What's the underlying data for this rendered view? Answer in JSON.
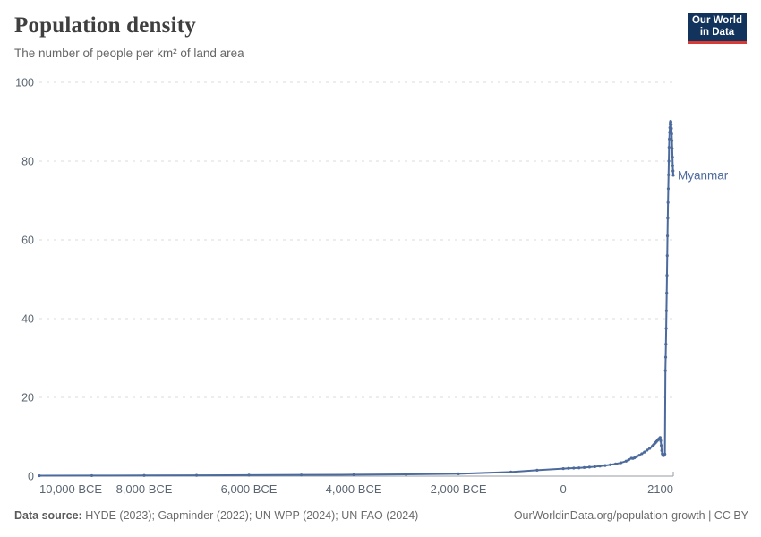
{
  "header": {
    "title": "Population density",
    "subtitle": "The number of people per km² of land area"
  },
  "logo": {
    "line1": "Our World",
    "line2": "in Data"
  },
  "footer": {
    "source_label": "Data source:",
    "source_text": " HYDE (2023); Gapminder (2022); UN WPP (2024); UN FAO (2024)",
    "link": "OurWorldinData.org/population-growth | CC BY"
  },
  "colors": {
    "line": "#4C6A9C",
    "entity_label": "#4C6A9C",
    "grid": "#d7dbdf",
    "axis": "#949da6",
    "tick_text": "#5b6673",
    "logo_bg": "#12335c",
    "logo_red": "#d93a34"
  },
  "chart_data": {
    "type": "line",
    "title": "Population density",
    "subtitle": "The number of people per km² of land area",
    "xlabel": "",
    "ylabel": "",
    "xlim": [
      -10000,
      2100
    ],
    "ylim": [
      0,
      100
    ],
    "grid": true,
    "legend_position": "end-of-line",
    "x_ticks": [
      {
        "year": -10000,
        "label": "10,000 BCE"
      },
      {
        "year": -8000,
        "label": "8,000 BCE"
      },
      {
        "year": -6000,
        "label": "6,000 BCE"
      },
      {
        "year": -4000,
        "label": "4,000 BCE"
      },
      {
        "year": -2000,
        "label": "2,000 BCE"
      },
      {
        "year": 0,
        "label": "0"
      },
      {
        "year": 2100,
        "label": "2100"
      }
    ],
    "y_ticks": [
      {
        "value": 0,
        "label": "0"
      },
      {
        "value": 20,
        "label": "20"
      },
      {
        "value": 40,
        "label": "40"
      },
      {
        "value": 60,
        "label": "60"
      },
      {
        "value": 80,
        "label": "80"
      },
      {
        "value": 100,
        "label": "100"
      }
    ],
    "series": [
      {
        "name": "Myanmar",
        "color": "#4C6A9C",
        "points": [
          [
            -10000,
            0.1
          ],
          [
            -9000,
            0.13
          ],
          [
            -8000,
            0.17
          ],
          [
            -7000,
            0.2
          ],
          [
            -6000,
            0.25
          ],
          [
            -5000,
            0.3
          ],
          [
            -4000,
            0.36
          ],
          [
            -3000,
            0.45
          ],
          [
            -2000,
            0.6
          ],
          [
            -1000,
            1.05
          ],
          [
            -500,
            1.5
          ],
          [
            0,
            1.9
          ],
          [
            100,
            2.0
          ],
          [
            200,
            2.05
          ],
          [
            300,
            2.1
          ],
          [
            400,
            2.2
          ],
          [
            500,
            2.3
          ],
          [
            600,
            2.4
          ],
          [
            700,
            2.55
          ],
          [
            800,
            2.7
          ],
          [
            900,
            2.9
          ],
          [
            1000,
            3.1
          ],
          [
            1100,
            3.4
          ],
          [
            1200,
            3.8
          ],
          [
            1250,
            4.15
          ],
          [
            1300,
            4.55
          ],
          [
            1330,
            4.5
          ],
          [
            1360,
            4.65
          ],
          [
            1400,
            4.95
          ],
          [
            1450,
            5.3
          ],
          [
            1500,
            5.7
          ],
          [
            1550,
            6.1
          ],
          [
            1600,
            6.6
          ],
          [
            1650,
            7.05
          ],
          [
            1700,
            7.6
          ],
          [
            1720,
            7.9
          ],
          [
            1740,
            8.2
          ],
          [
            1760,
            8.5
          ],
          [
            1780,
            8.8
          ],
          [
            1800,
            9.1
          ],
          [
            1820,
            9.4
          ],
          [
            1840,
            9.65
          ],
          [
            1850,
            9.8
          ],
          [
            1860,
            9.0
          ],
          [
            1870,
            7.8
          ],
          [
            1880,
            6.5
          ],
          [
            1890,
            5.7
          ],
          [
            1900,
            5.3
          ],
          [
            1910,
            5.2
          ],
          [
            1920,
            5.25
          ],
          [
            1930,
            5.4
          ],
          [
            1940,
            5.6
          ],
          [
            1950,
            26.8
          ],
          [
            1955,
            30.2
          ],
          [
            1960,
            33.5
          ],
          [
            1965,
            37.5
          ],
          [
            1970,
            42
          ],
          [
            1975,
            46.5
          ],
          [
            1980,
            51
          ],
          [
            1985,
            56
          ],
          [
            1990,
            61
          ],
          [
            1995,
            65.5
          ],
          [
            2000,
            69.5
          ],
          [
            2005,
            73
          ],
          [
            2010,
            76.5
          ],
          [
            2015,
            80
          ],
          [
            2020,
            83.5
          ],
          [
            2025,
            85.6
          ],
          [
            2030,
            87.3
          ],
          [
            2035,
            88.5
          ],
          [
            2040,
            89.4
          ],
          [
            2045,
            89.9
          ],
          [
            2050,
            90.1
          ],
          [
            2055,
            89.9
          ],
          [
            2060,
            89.3
          ],
          [
            2065,
            88.3
          ],
          [
            2070,
            86.9
          ],
          [
            2075,
            85.2
          ],
          [
            2080,
            83.2
          ],
          [
            2085,
            81
          ],
          [
            2090,
            78.8
          ],
          [
            2095,
            77.5
          ],
          [
            2100,
            76.4
          ]
        ]
      }
    ]
  }
}
